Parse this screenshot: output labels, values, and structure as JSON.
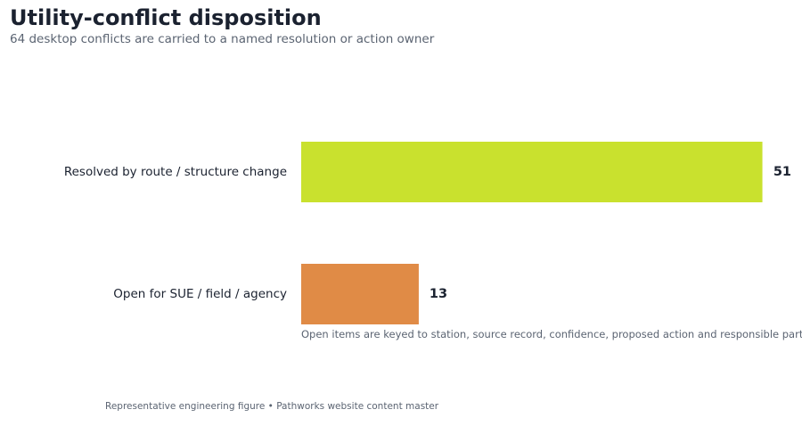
{
  "header": {
    "title": "Utility-conflict disposition",
    "subtitle": "64 desktop conflicts are carried to a named resolution or action owner"
  },
  "chart_data": {
    "type": "bar",
    "orientation": "horizontal",
    "categories": [
      "Resolved by route / structure change",
      "Open for SUE / field / agency"
    ],
    "values": [
      51,
      13
    ],
    "value_labels": [
      "51",
      "13"
    ],
    "colors": [
      "#c9e12e",
      "#e08b46"
    ],
    "xlim": [
      0,
      54
    ],
    "grid": false,
    "annotation": "Open items are keyed to station, source record, confidence, proposed action and responsible party."
  },
  "footer": {
    "text": "Representative engineering figure • Pathworks website content master"
  }
}
